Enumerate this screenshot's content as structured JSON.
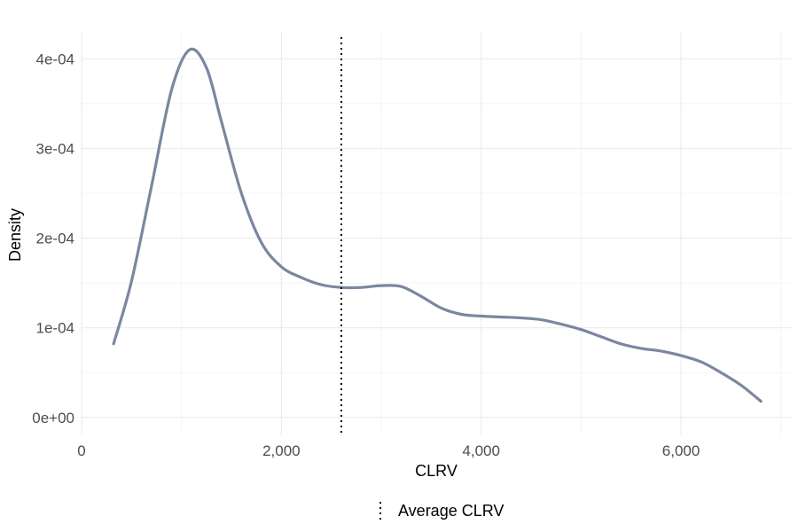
{
  "chart_data": {
    "type": "line",
    "title": "",
    "xlabel": "CLRV",
    "ylabel": "Density",
    "xlim": [
      0,
      7100
    ],
    "ylim": [
      -2e-05,
      0.00043
    ],
    "x_ticks": [
      0,
      2000,
      4000,
      6000
    ],
    "x_tick_labels": [
      "0",
      "2,000",
      "4,000",
      "6,000"
    ],
    "y_ticks": [
      0,
      0.0001,
      0.0002,
      0.0003,
      0.0004
    ],
    "y_tick_labels": [
      "0e+00",
      "1e-04",
      "2e-04",
      "3e-04",
      "4e-04"
    ],
    "grid": true,
    "series": [
      {
        "color": "#7b879f",
        "x": [
          320,
          500,
          700,
          900,
          1080,
          1250,
          1400,
          1600,
          1800,
          2000,
          2200,
          2400,
          2600,
          2800,
          3000,
          3200,
          3400,
          3600,
          3800,
          4000,
          4200,
          4400,
          4600,
          4800,
          5000,
          5200,
          5400,
          5600,
          5800,
          6000,
          6200,
          6400,
          6600,
          6800
        ],
        "y": [
          8.2e-05,
          0.000152,
          0.000258,
          0.000365,
          0.00041,
          0.00039,
          0.00033,
          0.00025,
          0.000195,
          0.000168,
          0.000156,
          0.000148,
          0.000145,
          0.000145,
          0.000147,
          0.000146,
          0.000135,
          0.000122,
          0.000115,
          0.000113,
          0.000112,
          0.000111,
          0.000109,
          0.000104,
          9.8e-05,
          9e-05,
          8.2e-05,
          7.7e-05,
          7.4e-05,
          6.9e-05,
          6.2e-05,
          5e-05,
          3.6e-05,
          1.8e-05
        ]
      }
    ],
    "average_line": {
      "x": 2600,
      "style": "dotted",
      "color": "#000000"
    },
    "legend": {
      "placement": "bottom",
      "entries": [
        "Average CLRV"
      ]
    }
  }
}
